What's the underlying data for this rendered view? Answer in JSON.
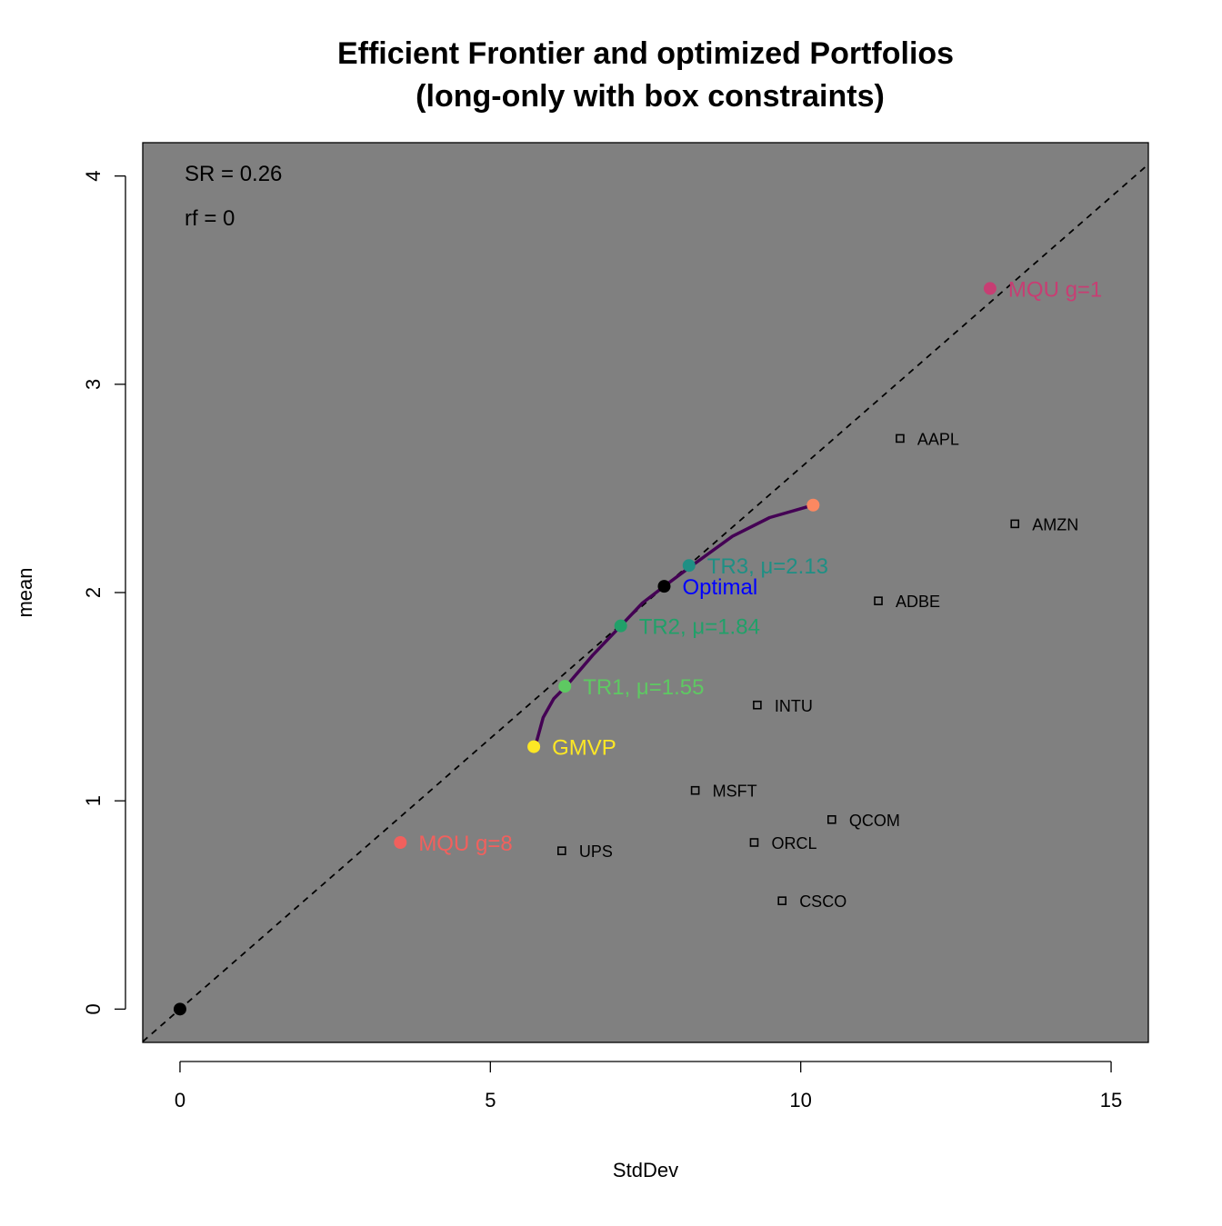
{
  "chart_data": {
    "type": "scatter",
    "title_line1": "Efficient Frontier and optimized Portfolios",
    "title_line2": "(long-only with box constraints)",
    "xlabel": "StdDev",
    "ylabel": "mean",
    "xlim": [
      -0.6,
      15.6
    ],
    "ylim": [
      -0.16,
      4.16
    ],
    "x_ticks": [
      0,
      5,
      10,
      15
    ],
    "y_ticks": [
      0,
      1,
      2,
      3,
      4
    ],
    "panel_background": "#808080",
    "annotations": {
      "sr": "SR = 0.26",
      "rf": "rf = 0"
    },
    "tangency_line": {
      "intercept": 0,
      "slope": 0.26,
      "style": "dashed",
      "color": "#000000"
    },
    "frontier": {
      "color": "#440154",
      "points": [
        [
          5.75,
          1.29
        ],
        [
          5.85,
          1.4
        ],
        [
          6.02,
          1.49
        ],
        [
          6.22,
          1.55
        ],
        [
          6.65,
          1.7
        ],
        [
          7.1,
          1.84
        ],
        [
          7.45,
          1.95
        ],
        [
          7.8,
          2.03
        ],
        [
          8.25,
          2.13
        ],
        [
          8.9,
          2.27
        ],
        [
          9.5,
          2.36
        ],
        [
          10.2,
          2.42
        ]
      ]
    },
    "portfolios": [
      {
        "x": 0,
        "y": 0,
        "label": "",
        "color": "#000000"
      },
      {
        "x": 5.7,
        "y": 1.26,
        "label": "GMVP",
        "color": "#FDE725"
      },
      {
        "x": 6.2,
        "y": 1.55,
        "label": "TR1, μ=1.55",
        "color": "#5EC962"
      },
      {
        "x": 7.1,
        "y": 1.84,
        "label": "TR2, μ=1.84",
        "color": "#21A069"
      },
      {
        "x": 7.8,
        "y": 2.03,
        "label": "Optimal",
        "color": "#000000",
        "label_color": "#0000FF"
      },
      {
        "x": 8.2,
        "y": 2.13,
        "label": "TR3, μ=2.13",
        "color": "#1F8F84"
      },
      {
        "x": 10.2,
        "y": 2.42,
        "label": "",
        "color": "#FB8861"
      },
      {
        "x": 3.55,
        "y": 0.8,
        "label": "MQU g=8",
        "color": "#F1605D"
      },
      {
        "x": 13.05,
        "y": 3.46,
        "label": "MQU g=1",
        "color": "#C73E73"
      }
    ],
    "assets": [
      {
        "name": "AAPL",
        "x": 11.6,
        "y": 2.74
      },
      {
        "name": "AMZN",
        "x": 13.45,
        "y": 2.33
      },
      {
        "name": "ADBE",
        "x": 11.25,
        "y": 1.96
      },
      {
        "name": "INTU",
        "x": 9.3,
        "y": 1.46
      },
      {
        "name": "MSFT",
        "x": 8.3,
        "y": 1.05
      },
      {
        "name": "QCOM",
        "x": 10.5,
        "y": 0.91
      },
      {
        "name": "ORCL",
        "x": 9.25,
        "y": 0.8
      },
      {
        "name": "UPS",
        "x": 6.15,
        "y": 0.76
      },
      {
        "name": "CSCO",
        "x": 9.7,
        "y": 0.52
      }
    ]
  }
}
